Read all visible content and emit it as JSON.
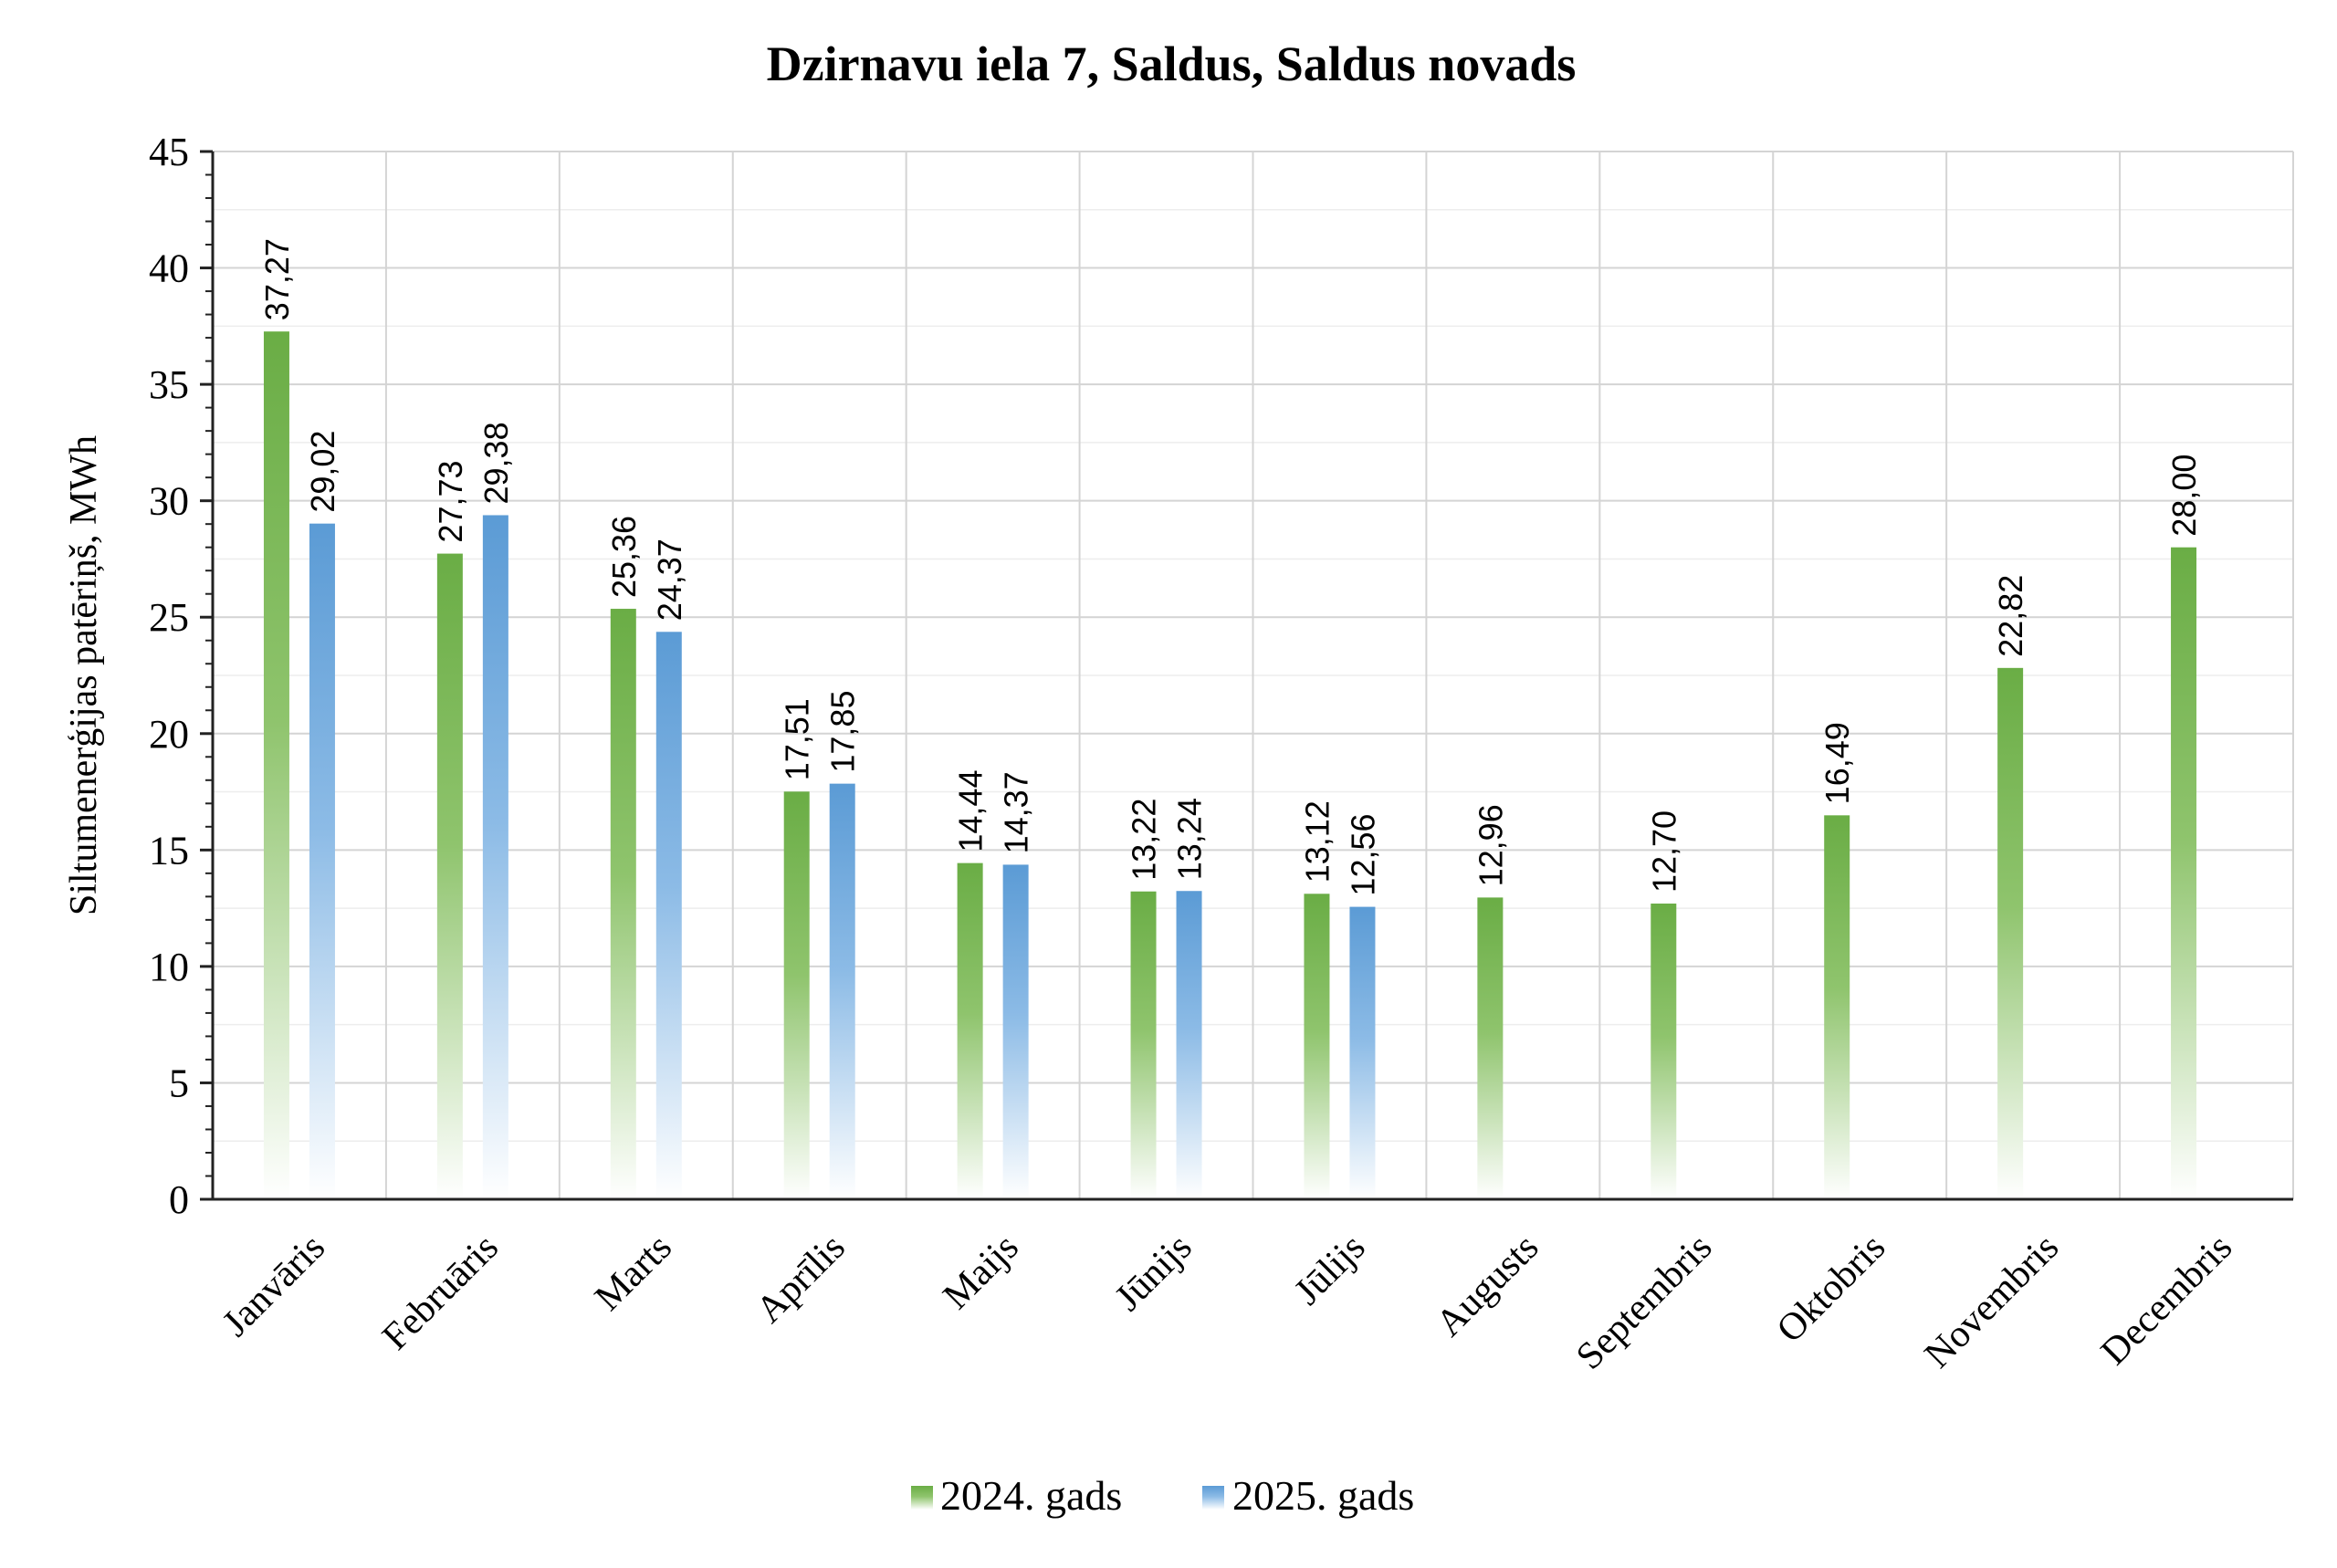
{
  "chart_data": {
    "type": "bar",
    "title": "Dzirnavu iela 7, Saldus, Saldus novads",
    "xlabel": "",
    "ylabel": "Siltumenerģijas patēriņš, MWh",
    "ylim": [
      0,
      45
    ],
    "yticks": [
      "0",
      "5",
      "10",
      "15",
      "20",
      "25",
      "30",
      "35",
      "40",
      "45"
    ],
    "ytick_values": [
      0,
      5,
      10,
      15,
      20,
      25,
      30,
      35,
      40,
      45
    ],
    "grid": true,
    "legend_position": "bottom",
    "categories": [
      "Janvāris",
      "Februāris",
      "Marts",
      "Aprīlis",
      "Maijs",
      "Jūnijs",
      "Jūlijs",
      "Augusts",
      "Septembris",
      "Oktobris",
      "Novembris",
      "Decembris"
    ],
    "series": [
      {
        "name": "2024. gads",
        "color": "#6aad45",
        "values": [
          37.27,
          27.73,
          25.36,
          17.51,
          14.44,
          13.22,
          13.12,
          12.96,
          12.7,
          16.49,
          22.82,
          28.0
        ],
        "labels": [
          "37,27",
          "27,73",
          "25,36",
          "17,51",
          "14,44",
          "13,22",
          "13,12",
          "12,96",
          "12,70",
          "16,49",
          "22,82",
          "28,00"
        ]
      },
      {
        "name": "2025. gads",
        "color": "#5b9bd5",
        "values": [
          29.02,
          29.38,
          24.37,
          17.85,
          14.37,
          13.24,
          12.56,
          null,
          null,
          null,
          null,
          null
        ],
        "labels": [
          "29,02",
          "29,38",
          "24,37",
          "17,85",
          "14,37",
          "13,24",
          "12,56",
          null,
          null,
          null,
          null,
          null
        ]
      }
    ]
  }
}
